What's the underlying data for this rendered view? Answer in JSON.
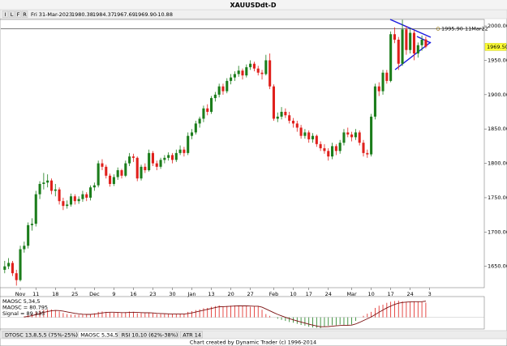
{
  "chart_data": {
    "type": "candlestick",
    "title": "XAUUSDdt-D",
    "header": {
      "buttons": [
        "I",
        "L",
        "F",
        "R"
      ],
      "date": "Fri 31-Mar-2023",
      "open": "1980.38",
      "high": "1984.37",
      "low": "1967.69",
      "close": "1969.90",
      "change": "-10.88"
    },
    "up_color": "#1b7d1b",
    "down_color": "#e0201c",
    "candles": [
      [
        1645,
        1658,
        1640,
        1650
      ],
      [
        1650,
        1662,
        1646,
        1655
      ],
      [
        1655,
        1658,
        1636,
        1640
      ],
      [
        1640,
        1645,
        1622,
        1630
      ],
      [
        1630,
        1680,
        1628,
        1675
      ],
      [
        1675,
        1686,
        1670,
        1680
      ],
      [
        1680,
        1714,
        1676,
        1710
      ],
      [
        1710,
        1720,
        1702,
        1712
      ],
      [
        1712,
        1760,
        1708,
        1755
      ],
      [
        1755,
        1774,
        1748,
        1770
      ],
      [
        1770,
        1786,
        1762,
        1772
      ],
      [
        1772,
        1784,
        1765,
        1775
      ],
      [
        1775,
        1778,
        1755,
        1760
      ],
      [
        1760,
        1770,
        1752,
        1762
      ],
      [
        1762,
        1765,
        1740,
        1745
      ],
      [
        1745,
        1750,
        1732,
        1738
      ],
      [
        1738,
        1746,
        1734,
        1740
      ],
      [
        1740,
        1756,
        1737,
        1752
      ],
      [
        1752,
        1755,
        1740,
        1745
      ],
      [
        1745,
        1752,
        1741,
        1748
      ],
      [
        1748,
        1760,
        1744,
        1755
      ],
      [
        1755,
        1758,
        1745,
        1750
      ],
      [
        1750,
        1768,
        1746,
        1765
      ],
      [
        1765,
        1772,
        1760,
        1768
      ],
      [
        1768,
        1804,
        1765,
        1800
      ],
      [
        1800,
        1806,
        1790,
        1795
      ],
      [
        1795,
        1798,
        1778,
        1782
      ],
      [
        1782,
        1785,
        1766,
        1770
      ],
      [
        1770,
        1784,
        1767,
        1780
      ],
      [
        1780,
        1794,
        1776,
        1790
      ],
      [
        1790,
        1792,
        1778,
        1782
      ],
      [
        1782,
        1804,
        1780,
        1800
      ],
      [
        1800,
        1815,
        1796,
        1810
      ],
      [
        1810,
        1814,
        1802,
        1808
      ],
      [
        1808,
        1810,
        1774,
        1778
      ],
      [
        1778,
        1798,
        1775,
        1795
      ],
      [
        1795,
        1800,
        1786,
        1790
      ],
      [
        1790,
        1820,
        1788,
        1815
      ],
      [
        1815,
        1818,
        1796,
        1800
      ],
      [
        1800,
        1804,
        1790,
        1795
      ],
      [
        1795,
        1808,
        1792,
        1805
      ],
      [
        1805,
        1812,
        1800,
        1808
      ],
      [
        1808,
        1816,
        1804,
        1812
      ],
      [
        1812,
        1815,
        1800,
        1805
      ],
      [
        1805,
        1820,
        1802,
        1815
      ],
      [
        1815,
        1826,
        1812,
        1820
      ],
      [
        1820,
        1824,
        1810,
        1815
      ],
      [
        1815,
        1845,
        1812,
        1840
      ],
      [
        1840,
        1850,
        1835,
        1845
      ],
      [
        1845,
        1862,
        1842,
        1858
      ],
      [
        1858,
        1868,
        1852,
        1865
      ],
      [
        1865,
        1884,
        1860,
        1880
      ],
      [
        1880,
        1886,
        1870,
        1875
      ],
      [
        1875,
        1898,
        1872,
        1895
      ],
      [
        1895,
        1904,
        1890,
        1900
      ],
      [
        1900,
        1916,
        1896,
        1912
      ],
      [
        1912,
        1916,
        1900,
        1905
      ],
      [
        1905,
        1924,
        1902,
        1920
      ],
      [
        1920,
        1930,
        1915,
        1925
      ],
      [
        1925,
        1934,
        1920,
        1930
      ],
      [
        1930,
        1942,
        1926,
        1935
      ],
      [
        1935,
        1938,
        1922,
        1928
      ],
      [
        1928,
        1944,
        1925,
        1940
      ],
      [
        1940,
        1950,
        1936,
        1945
      ],
      [
        1945,
        1948,
        1934,
        1938
      ],
      [
        1938,
        1942,
        1928,
        1932
      ],
      [
        1932,
        1936,
        1922,
        1930
      ],
      [
        1930,
        1958,
        1928,
        1950
      ],
      [
        1950,
        1960,
        1908,
        1912
      ],
      [
        1912,
        1915,
        1862,
        1865
      ],
      [
        1865,
        1874,
        1860,
        1868
      ],
      [
        1868,
        1882,
        1864,
        1875
      ],
      [
        1875,
        1880,
        1866,
        1870
      ],
      [
        1870,
        1875,
        1858,
        1862
      ],
      [
        1862,
        1866,
        1852,
        1858
      ],
      [
        1858,
        1862,
        1846,
        1852
      ],
      [
        1852,
        1856,
        1836,
        1840
      ],
      [
        1840,
        1850,
        1836,
        1845
      ],
      [
        1845,
        1848,
        1830,
        1835
      ],
      [
        1835,
        1844,
        1830,
        1840
      ],
      [
        1840,
        1842,
        1824,
        1828
      ],
      [
        1828,
        1832,
        1818,
        1822
      ],
      [
        1822,
        1828,
        1814,
        1818
      ],
      [
        1818,
        1822,
        1804,
        1810
      ],
      [
        1810,
        1830,
        1806,
        1825
      ],
      [
        1825,
        1828,
        1812,
        1818
      ],
      [
        1818,
        1834,
        1814,
        1830
      ],
      [
        1830,
        1850,
        1826,
        1845
      ],
      [
        1845,
        1852,
        1838,
        1842
      ],
      [
        1842,
        1846,
        1832,
        1838
      ],
      [
        1838,
        1850,
        1834,
        1845
      ],
      [
        1845,
        1848,
        1826,
        1830
      ],
      [
        1830,
        1834,
        1810,
        1815
      ],
      [
        1815,
        1820,
        1808,
        1813
      ],
      [
        1813,
        1872,
        1810,
        1868
      ],
      [
        1868,
        1916,
        1864,
        1912
      ],
      [
        1912,
        1918,
        1898,
        1905
      ],
      [
        1905,
        1936,
        1900,
        1932
      ],
      [
        1932,
        1936,
        1916,
        1920
      ],
      [
        1920,
        1992,
        1918,
        1988
      ],
      [
        1988,
        1998,
        1975,
        1980
      ],
      [
        1980,
        1984,
        1936,
        1945
      ],
      [
        1945,
        2009,
        1942,
        1995
      ],
      [
        1995,
        2000,
        1958,
        1965
      ],
      [
        1965,
        1996,
        1960,
        1990
      ],
      [
        1990,
        1994,
        1950,
        1960
      ],
      [
        1960,
        1976,
        1954,
        1972
      ],
      [
        1972,
        1986,
        1964,
        1980
      ],
      [
        1980.38,
        1984.37,
        1967.69,
        1969.9
      ]
    ],
    "xlim": [
      -1,
      123
    ],
    "xticks": [
      {
        "value": 4,
        "label": "Nov"
      },
      {
        "value": 8,
        "label": "11"
      },
      {
        "value": 13,
        "label": "18"
      },
      {
        "value": 18,
        "label": "25"
      },
      {
        "value": 23,
        "label": "Dec"
      },
      {
        "value": 28,
        "label": "9"
      },
      {
        "value": 33,
        "label": "16"
      },
      {
        "value": 38,
        "label": "23"
      },
      {
        "value": 43,
        "label": "30"
      },
      {
        "value": 48,
        "label": "Jan"
      },
      {
        "value": 53,
        "label": "13"
      },
      {
        "value": 58,
        "label": "20"
      },
      {
        "value": 63,
        "label": "27"
      },
      {
        "value": 69,
        "label": "Feb"
      },
      {
        "value": 74,
        "label": "10"
      },
      {
        "value": 78,
        "label": "17"
      },
      {
        "value": 83,
        "label": "24"
      },
      {
        "value": 89,
        "label": "Mar"
      },
      {
        "value": 94,
        "label": "10"
      },
      {
        "value": 99,
        "label": "17"
      },
      {
        "value": 104,
        "label": "24"
      },
      {
        "value": 109,
        "label": "3"
      }
    ],
    "ylim": [
      1619,
      2009.5
    ],
    "yticks": [
      {
        "value": 1650,
        "label": "1650.00"
      },
      {
        "value": 1700,
        "label": "1700.00"
      },
      {
        "value": 1750,
        "label": "1750.00"
      },
      {
        "value": 1800,
        "label": "1800.00"
      },
      {
        "value": 1850,
        "label": "1850.00"
      },
      {
        "value": 1900,
        "label": "1900.00"
      },
      {
        "value": 1950,
        "label": "1950.00"
      },
      {
        "value": 2000,
        "label": "2000.00"
      }
    ],
    "reference": {
      "value": 1995.9,
      "label": "1995.90 11Mar22"
    },
    "last_price": {
      "value": 1969.5,
      "label": "1969.50"
    },
    "indicator": {
      "title": "MAOSC 5,34,5",
      "value_label": "MAOSC = 80.795",
      "signal_label": "Signal = 89.335",
      "ylim": [
        -60,
        110
      ],
      "maosc": [
        null,
        null,
        null,
        null,
        null,
        5,
        12,
        20,
        30,
        38,
        42,
        44,
        43,
        38,
        32,
        24,
        18,
        15,
        14,
        14,
        15,
        16,
        17,
        22,
        30,
        32,
        30,
        26,
        25,
        26,
        24,
        28,
        32,
        30,
        22,
        24,
        22,
        26,
        22,
        18,
        18,
        17,
        18,
        16,
        18,
        20,
        19,
        30,
        34,
        40,
        44,
        50,
        52,
        58,
        62,
        66,
        60,
        62,
        64,
        66,
        66,
        64,
        62,
        58,
        60,
        62,
        42,
        18,
        8,
        0,
        -8,
        -14,
        -20,
        -26,
        -30,
        -36,
        -42,
        -46,
        -52,
        -56,
        -58,
        -60,
        -52,
        -46,
        -44,
        -44,
        -40,
        -42,
        -46,
        -40,
        -20,
        0,
        8,
        20,
        30,
        52,
        64,
        70,
        80,
        86,
        90,
        92,
        88,
        84,
        86,
        88,
        86,
        84,
        80.795
      ],
      "signal": [
        null,
        null,
        null,
        null,
        null,
        2,
        5,
        9,
        15,
        21,
        27,
        32,
        36,
        38,
        37,
        34,
        30,
        26,
        22,
        19,
        17,
        16,
        16,
        18,
        21,
        24,
        27,
        28,
        28,
        27,
        26,
        26,
        27,
        28,
        27,
        26,
        25,
        25,
        24,
        22,
        21,
        20,
        19,
        18,
        18,
        18,
        18,
        21,
        24,
        29,
        34,
        39,
        44,
        49,
        54,
        58,
        59,
        60,
        61,
        62,
        63,
        63,
        63,
        62,
        61,
        61,
        56,
        46,
        36,
        26,
        16,
        8,
        0,
        -7,
        -14,
        -20,
        -26,
        -32,
        -38,
        -43,
        -48,
        -52,
        -52,
        -51,
        -49,
        -47,
        -45,
        -44,
        -44,
        -43,
        -37,
        -28,
        -18,
        -8,
        2,
        15,
        28,
        40,
        52,
        62,
        71,
        78,
        82,
        84,
        85,
        86,
        86,
        86,
        89.335
      ],
      "positive_color": "#e0201c",
      "negative_color": "#1b7d1b",
      "signal_color": "#7a1010"
    },
    "tabs": [
      "DTOSC 13,8,5,5 (75%-25%)",
      "MAOSC 5,34,5",
      "RSI 10,10 (62%-38%)",
      "ATR 14"
    ],
    "footer": "Chart created by Dynamic Trader  (c)  1996-2014"
  }
}
